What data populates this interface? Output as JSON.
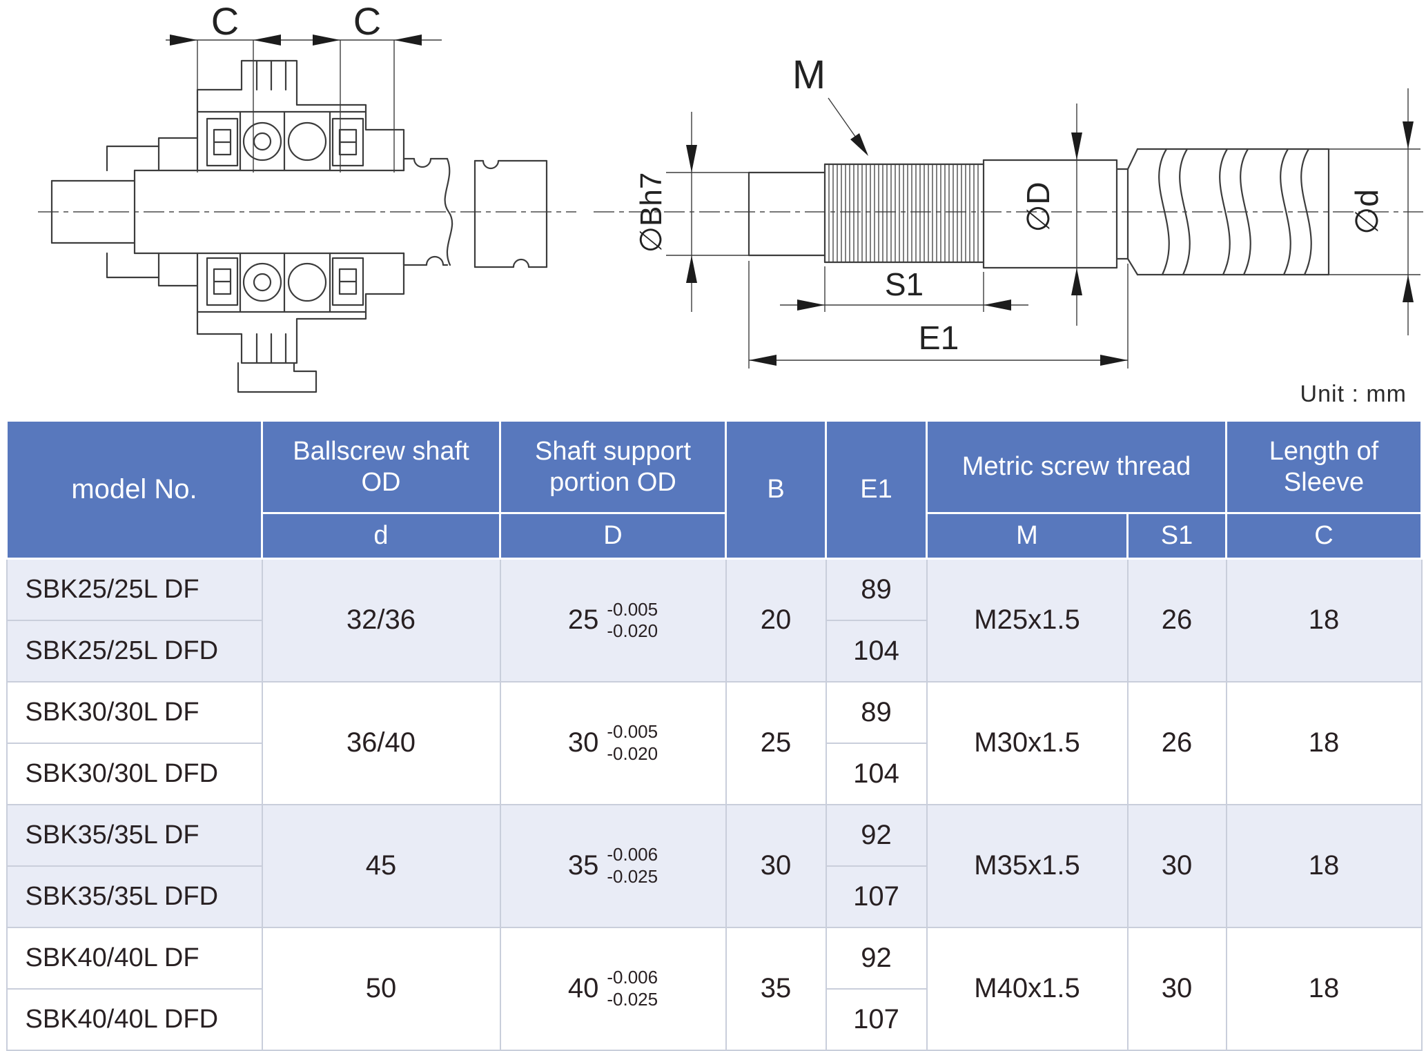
{
  "unit_label": "Unit : mm",
  "drawing": {
    "c": "C",
    "m": "M",
    "bh7": "∅Bh7",
    "dia_D": "∅D",
    "dia_d": "∅d",
    "s1": "S1",
    "e1": "E1"
  },
  "table": {
    "header": {
      "model_no": "model No.",
      "ballscrew_shaft_od": "Ballscrew shaft OD",
      "shaft_support_od": "Shaft support portion OD",
      "b": "B",
      "e1": "E1",
      "metric_screw_thread": "Metric screw thread",
      "length_of_sleeve": "Length of Sleeve",
      "sub_d": "d",
      "sub_D": "D",
      "sub_m": "M",
      "sub_s1": "S1",
      "sub_c": "C"
    },
    "groups": [
      {
        "models": [
          "SBK25/25L DF",
          "SBK25/25L DFD"
        ],
        "d": "32/36",
        "D": "25",
        "D_tol_upper": "-0.005",
        "D_tol_lower": "-0.020",
        "B": "20",
        "E1": [
          "89",
          "104"
        ],
        "M": "M25x1.5",
        "S1": "26",
        "C": "18",
        "shade": true
      },
      {
        "models": [
          "SBK30/30L DF",
          "SBK30/30L DFD"
        ],
        "d": "36/40",
        "D": "30",
        "D_tol_upper": "-0.005",
        "D_tol_lower": "-0.020",
        "B": "25",
        "E1": [
          "89",
          "104"
        ],
        "M": "M30x1.5",
        "S1": "26",
        "C": "18",
        "shade": false
      },
      {
        "models": [
          "SBK35/35L DF",
          "SBK35/35L DFD"
        ],
        "d": "45",
        "D": "35",
        "D_tol_upper": "-0.006",
        "D_tol_lower": "-0.025",
        "B": "30",
        "E1": [
          "92",
          "107"
        ],
        "M": "M35x1.5",
        "S1": "30",
        "C": "18",
        "shade": true
      },
      {
        "models": [
          "SBK40/40L DF",
          "SBK40/40L DFD"
        ],
        "d": "50",
        "D": "40",
        "D_tol_upper": "-0.006",
        "D_tol_lower": "-0.025",
        "B": "35",
        "E1": [
          "92",
          "107"
        ],
        "M": "M40x1.5",
        "S1": "30",
        "C": "18",
        "shade": false
      }
    ]
  },
  "colors": {
    "header_bg": "#5878bd",
    "row_shade": "#e9ecf6",
    "row_plain": "#ffffff",
    "grid_line": "#c9cedb",
    "line": "#3c3c3c"
  }
}
